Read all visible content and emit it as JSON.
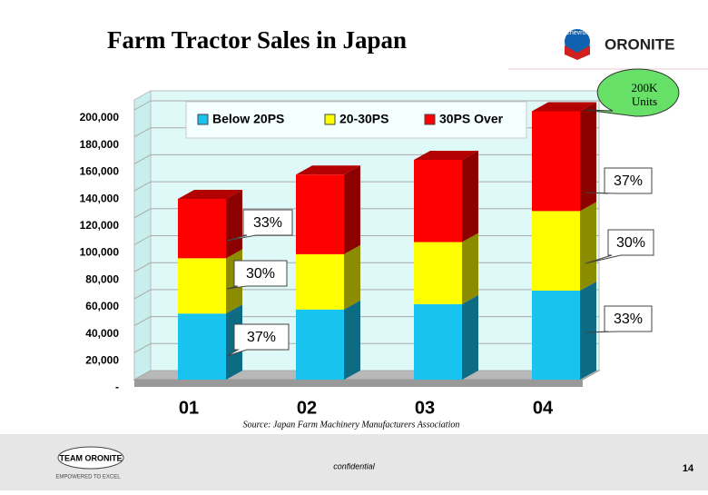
{
  "chart_data": {
    "type": "bar3d_stacked",
    "title": "Farm Tractor Sales in Japan",
    "categories": [
      "01",
      "02",
      "03",
      "04"
    ],
    "series": [
      {
        "name": "Below 20PS",
        "color": "#18c3f0",
        "values": [
          49000,
          52000,
          56000,
          66000
        ]
      },
      {
        "name": "20-30PS",
        "color": "#ffff00",
        "values": [
          41000,
          41000,
          46000,
          59000
        ]
      },
      {
        "name": "30PS Over",
        "color": "#ff0000",
        "values": [
          44000,
          59000,
          61000,
          74000
        ]
      }
    ],
    "ylim": [
      0,
      200000
    ],
    "yticks": [
      {
        "value": 0,
        "label": "-"
      },
      {
        "value": 20000,
        "label": "20,000"
      },
      {
        "value": 40000,
        "label": "40,000"
      },
      {
        "value": 60000,
        "label": "60,000"
      },
      {
        "value": 80000,
        "label": "80,000"
      },
      {
        "value": 100000,
        "label": "100,000"
      },
      {
        "value": 120000,
        "label": "120,000"
      },
      {
        "value": 140000,
        "label": "140,000"
      },
      {
        "value": 160000,
        "label": "160,000"
      },
      {
        "value": 180000,
        "label": "180,000"
      },
      {
        "value": 200000,
        "label": "200,000"
      }
    ],
    "grid": true,
    "legend": "top",
    "annotations": [
      {
        "text": "200K Units"
      },
      {
        "text": "33%"
      },
      {
        "text": "30%"
      },
      {
        "text": "37%"
      },
      {
        "text": "37%"
      },
      {
        "text": "30%"
      },
      {
        "text": "33%"
      }
    ],
    "source": "Source: Japan Farm Machinery Manufacturers Association"
  },
  "slide": {
    "logo_top_small": "Chevron",
    "logo_top": "ORONITE",
    "logo_bottom": "TEAM ORONITE",
    "tagline": "EMPOWERED TO EXCEL",
    "footer": "confidential",
    "page": "14"
  }
}
